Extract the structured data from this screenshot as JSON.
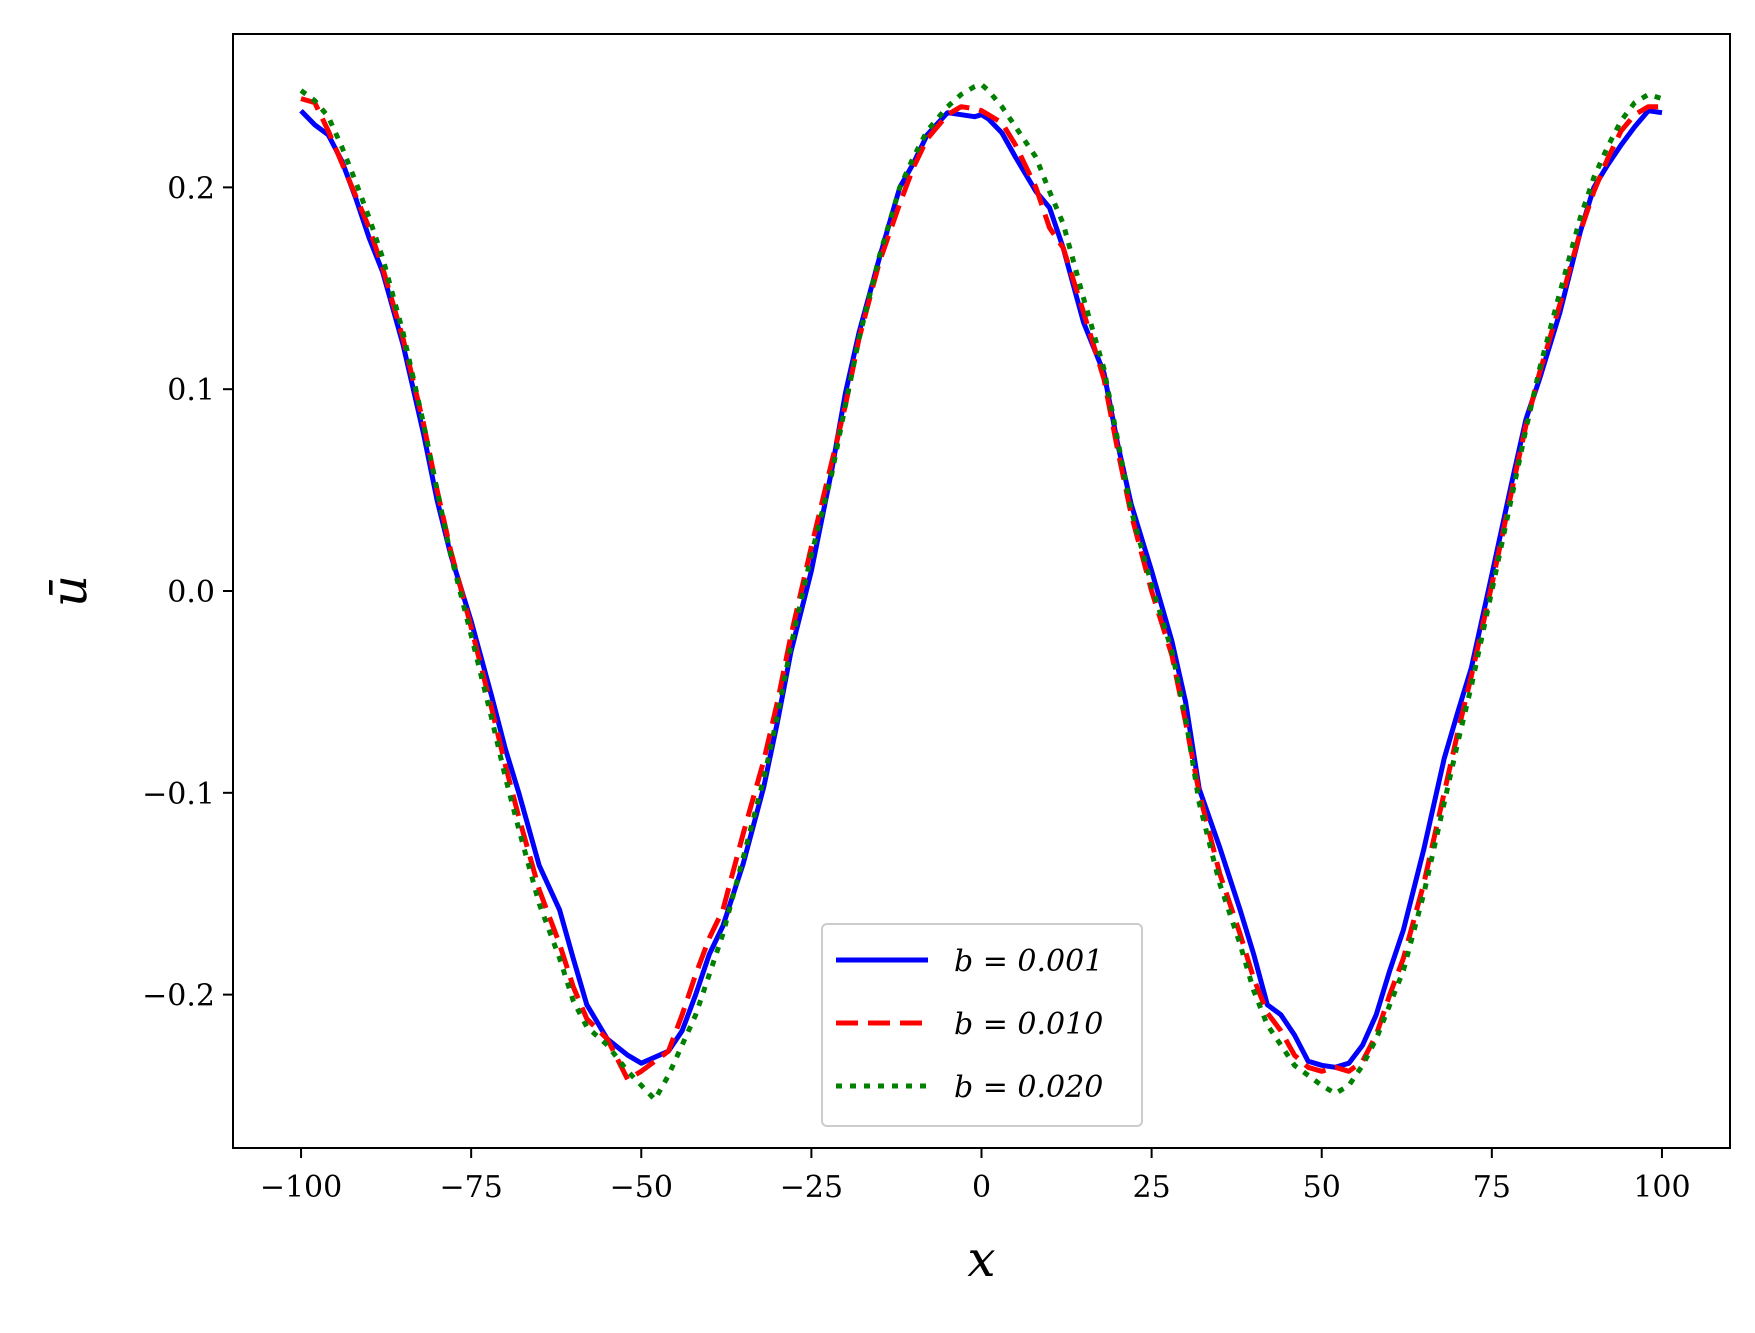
{
  "chart_data": {
    "type": "line",
    "xlabel": "x",
    "ylabel": "ū",
    "xlim": [
      -110,
      110
    ],
    "ylim": [
      -0.276,
      0.276
    ],
    "xticks": [
      -100,
      -75,
      -50,
      -25,
      0,
      25,
      50,
      75,
      100
    ],
    "xtick_labels": [
      "−100",
      "−75",
      "−50",
      "−25",
      "0",
      "25",
      "50",
      "75",
      "100"
    ],
    "yticks": [
      -0.2,
      -0.1,
      0.0,
      0.1,
      0.2
    ],
    "ytick_labels": [
      "−0.2",
      "−0.1",
      "0.0",
      "0.1",
      "0.2"
    ],
    "grid": false,
    "legend_position": "lower-center",
    "series": [
      {
        "name": "b = 0.001",
        "color": "#0000ff",
        "style": "solid",
        "x": [
          -100,
          -98,
          -96,
          -94,
          -92,
          -90,
          -88,
          -85,
          -82,
          -80,
          -78,
          -75,
          -72,
          -70,
          -68,
          -65,
          -62,
          -60,
          -58,
          -55,
          -52,
          -50,
          -48,
          -46,
          -44,
          -42,
          -40,
          -38,
          -35,
          -32,
          -30,
          -28,
          -25,
          -22,
          -20,
          -18,
          -15,
          -12,
          -10,
          -8,
          -5,
          -3,
          -1,
          0,
          1,
          3,
          5,
          8,
          10,
          12,
          15,
          18,
          20,
          22,
          25,
          28,
          30,
          32,
          35,
          38,
          40,
          42,
          44,
          46,
          48,
          50,
          52,
          54,
          56,
          58,
          60,
          62,
          65,
          68,
          70,
          72,
          75,
          78,
          80,
          82,
          85,
          88,
          90,
          92,
          94,
          96,
          98,
          100
        ],
        "y": [
          0.238,
          0.231,
          0.226,
          0.213,
          0.195,
          0.175,
          0.158,
          0.122,
          0.078,
          0.045,
          0.018,
          -0.015,
          -0.052,
          -0.078,
          -0.1,
          -0.136,
          -0.158,
          -0.182,
          -0.205,
          -0.222,
          -0.23,
          -0.234,
          -0.231,
          -0.228,
          -0.218,
          -0.2,
          -0.18,
          -0.166,
          -0.135,
          -0.097,
          -0.065,
          -0.03,
          0.01,
          0.06,
          0.098,
          0.128,
          0.165,
          0.2,
          0.212,
          0.226,
          0.237,
          0.236,
          0.235,
          0.236,
          0.234,
          0.227,
          0.215,
          0.198,
          0.19,
          0.17,
          0.133,
          0.108,
          0.073,
          0.043,
          0.01,
          -0.025,
          -0.055,
          -0.098,
          -0.127,
          -0.158,
          -0.18,
          -0.205,
          -0.21,
          -0.22,
          -0.233,
          -0.235,
          -0.236,
          -0.234,
          -0.225,
          -0.21,
          -0.188,
          -0.168,
          -0.128,
          -0.083,
          -0.06,
          -0.038,
          0.008,
          0.055,
          0.085,
          0.105,
          0.138,
          0.178,
          0.2,
          0.211,
          0.221,
          0.23,
          0.238,
          0.237
        ]
      },
      {
        "name": "b = 0.010",
        "color": "#ff0000",
        "style": "dashed",
        "x": [
          -100,
          -98,
          -96,
          -94,
          -92,
          -90,
          -88,
          -85,
          -82,
          -80,
          -78,
          -75,
          -72,
          -70,
          -68,
          -65,
          -62,
          -60,
          -58,
          -55,
          -52,
          -50,
          -48,
          -46,
          -44,
          -42,
          -40,
          -38,
          -35,
          -32,
          -30,
          -28,
          -25,
          -22,
          -20,
          -18,
          -15,
          -12,
          -10,
          -8,
          -5,
          -3,
          -1,
          0,
          1,
          3,
          5,
          8,
          10,
          12,
          15,
          18,
          20,
          22,
          25,
          28,
          30,
          32,
          35,
          38,
          40,
          42,
          44,
          46,
          48,
          50,
          52,
          54,
          56,
          58,
          60,
          62,
          65,
          68,
          70,
          72,
          75,
          78,
          80,
          82,
          85,
          88,
          90,
          92,
          94,
          96,
          98,
          100
        ],
        "y": [
          0.244,
          0.242,
          0.228,
          0.212,
          0.196,
          0.18,
          0.16,
          0.125,
          0.083,
          0.05,
          0.02,
          -0.018,
          -0.058,
          -0.086,
          -0.112,
          -0.148,
          -0.175,
          -0.196,
          -0.212,
          -0.222,
          -0.242,
          -0.238,
          -0.233,
          -0.228,
          -0.21,
          -0.19,
          -0.172,
          -0.158,
          -0.12,
          -0.084,
          -0.055,
          -0.022,
          0.022,
          0.064,
          0.092,
          0.125,
          0.163,
          0.192,
          0.21,
          0.224,
          0.236,
          0.24,
          0.239,
          0.238,
          0.236,
          0.232,
          0.221,
          0.2,
          0.18,
          0.17,
          0.138,
          0.105,
          0.07,
          0.038,
          0.0,
          -0.032,
          -0.065,
          -0.1,
          -0.14,
          -0.17,
          -0.192,
          -0.209,
          -0.218,
          -0.23,
          -0.236,
          -0.238,
          -0.236,
          -0.238,
          -0.233,
          -0.22,
          -0.2,
          -0.182,
          -0.145,
          -0.1,
          -0.07,
          -0.042,
          0.003,
          0.051,
          0.082,
          0.108,
          0.142,
          0.178,
          0.198,
          0.214,
          0.228,
          0.236,
          0.24,
          0.24
        ]
      },
      {
        "name": "b = 0.020",
        "color": "#008000",
        "style": "dotted",
        "x": [
          -100,
          -98,
          -96,
          -94,
          -92,
          -90,
          -88,
          -85,
          -82,
          -80,
          -78,
          -75,
          -72,
          -70,
          -68,
          -65,
          -62,
          -60,
          -58,
          -55,
          -52,
          -50,
          -48,
          -46,
          -44,
          -42,
          -40,
          -38,
          -35,
          -32,
          -30,
          -28,
          -25,
          -22,
          -20,
          -18,
          -15,
          -12,
          -10,
          -8,
          -5,
          -3,
          -1,
          0,
          1,
          3,
          5,
          8,
          10,
          12,
          15,
          18,
          20,
          22,
          25,
          28,
          30,
          32,
          35,
          38,
          40,
          42,
          44,
          46,
          48,
          50,
          52,
          54,
          56,
          58,
          60,
          62,
          65,
          68,
          70,
          72,
          75,
          78,
          80,
          82,
          85,
          88,
          90,
          92,
          94,
          96,
          98,
          100
        ],
        "y": [
          0.248,
          0.243,
          0.235,
          0.22,
          0.203,
          0.185,
          0.165,
          0.128,
          0.083,
          0.05,
          0.018,
          -0.022,
          -0.063,
          -0.092,
          -0.118,
          -0.155,
          -0.182,
          -0.203,
          -0.216,
          -0.225,
          -0.238,
          -0.245,
          -0.252,
          -0.24,
          -0.225,
          -0.21,
          -0.19,
          -0.17,
          -0.132,
          -0.093,
          -0.062,
          -0.027,
          0.018,
          0.058,
          0.092,
          0.125,
          0.166,
          0.2,
          0.215,
          0.228,
          0.24,
          0.246,
          0.25,
          0.251,
          0.248,
          0.24,
          0.23,
          0.215,
          0.198,
          0.182,
          0.145,
          0.11,
          0.075,
          0.04,
          0.003,
          -0.03,
          -0.063,
          -0.105,
          -0.145,
          -0.175,
          -0.198,
          -0.215,
          -0.225,
          -0.235,
          -0.24,
          -0.245,
          -0.249,
          -0.245,
          -0.235,
          -0.222,
          -0.205,
          -0.188,
          -0.15,
          -0.105,
          -0.075,
          -0.047,
          0.0,
          0.048,
          0.08,
          0.11,
          0.148,
          0.185,
          0.205,
          0.22,
          0.233,
          0.242,
          0.246,
          0.244
        ]
      }
    ]
  }
}
